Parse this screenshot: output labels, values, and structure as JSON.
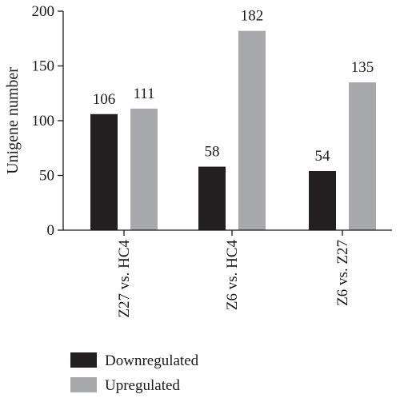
{
  "chart_data": {
    "type": "bar",
    "ylabel": "Unigene number",
    "xlabel": "",
    "ylim": [
      0,
      200
    ],
    "yticks": [
      0,
      50,
      100,
      150,
      200
    ],
    "categories": [
      "Z27 vs. HC4",
      "Z6 vs. HC4",
      "Z6 vs. Z27"
    ],
    "series": [
      {
        "name": "Downregulated",
        "color": "#231f20",
        "values": [
          106,
          58,
          54
        ]
      },
      {
        "name": "Upregulated",
        "color": "#a7a9ac",
        "values": [
          111,
          182,
          135
        ]
      }
    ],
    "grid": false,
    "legend_position": "bottom-left"
  }
}
